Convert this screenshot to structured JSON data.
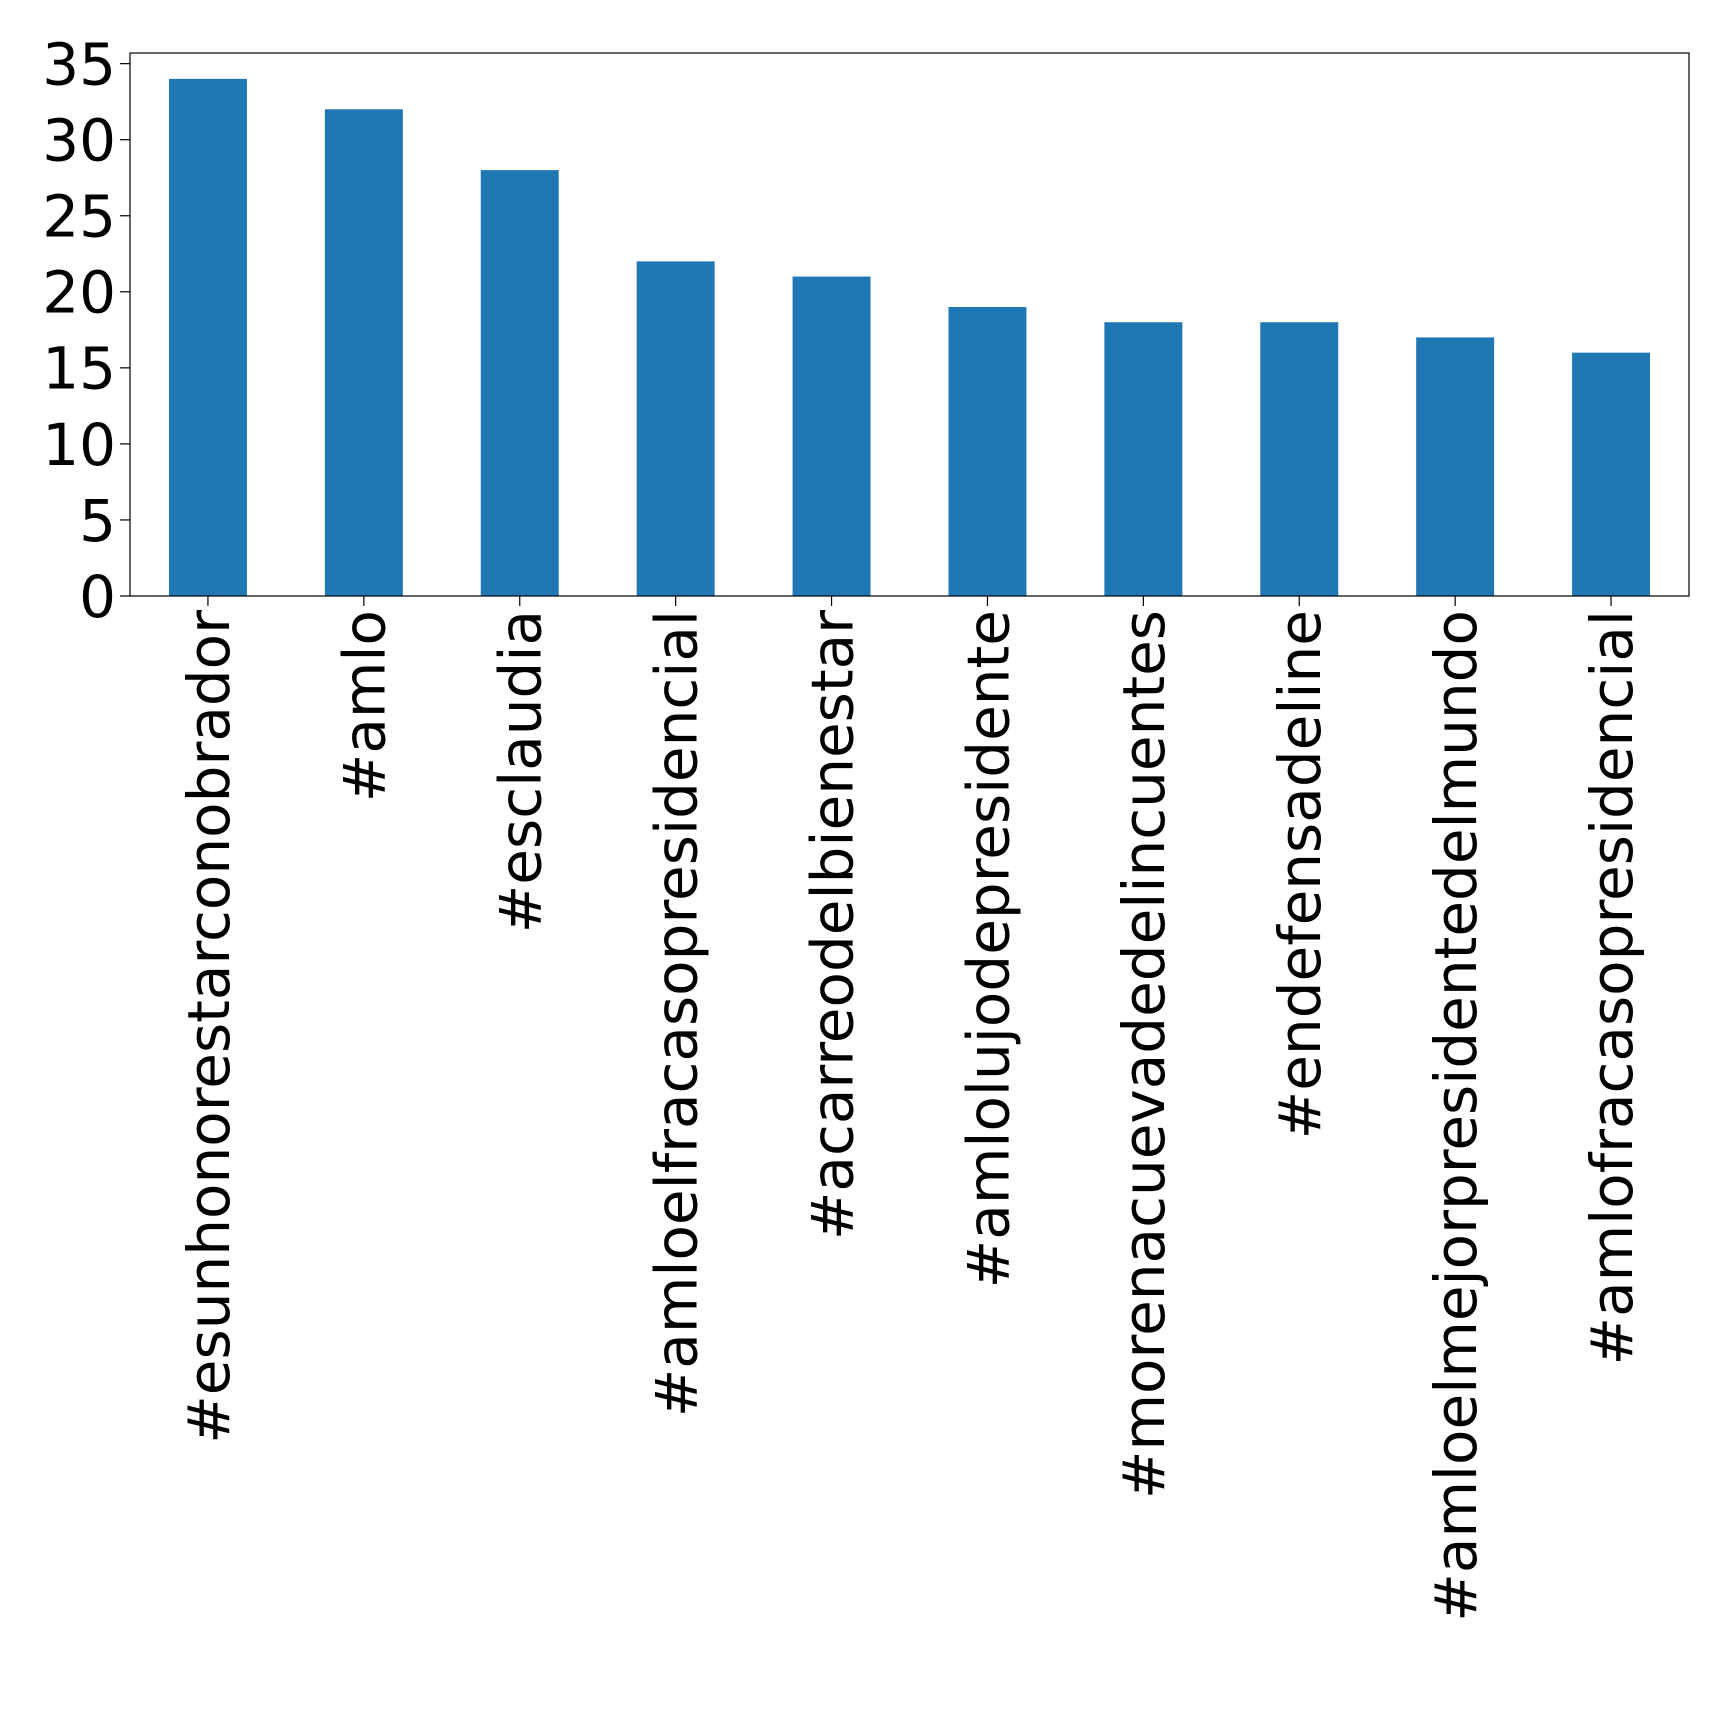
{
  "chart_data": {
    "type": "bar",
    "title": "",
    "xlabel": "",
    "ylabel": "",
    "categories": [
      "#esunhonorestarconobrador",
      "#amlo",
      "#esclaudia",
      "#amloelfracasopresidencial",
      "#acarreodelbienestar",
      "#amlolujodepresidente",
      "#morenacuevadedelincuentes",
      "#endefensadeline",
      "#amloelmejorpresidentedelmundo",
      "#amlofracasopresidencial"
    ],
    "values": [
      34,
      32,
      28,
      22,
      21,
      19,
      18,
      18,
      17,
      16
    ],
    "ylim": [
      0,
      35.7
    ],
    "yticks": [
      "0",
      "5",
      "10",
      "15",
      "20",
      "25",
      "30",
      "35"
    ],
    "grid": false,
    "legend": "none",
    "colors": {
      "bar": "#1f77b4",
      "axis": "#000000",
      "background": "#ffffff"
    }
  }
}
